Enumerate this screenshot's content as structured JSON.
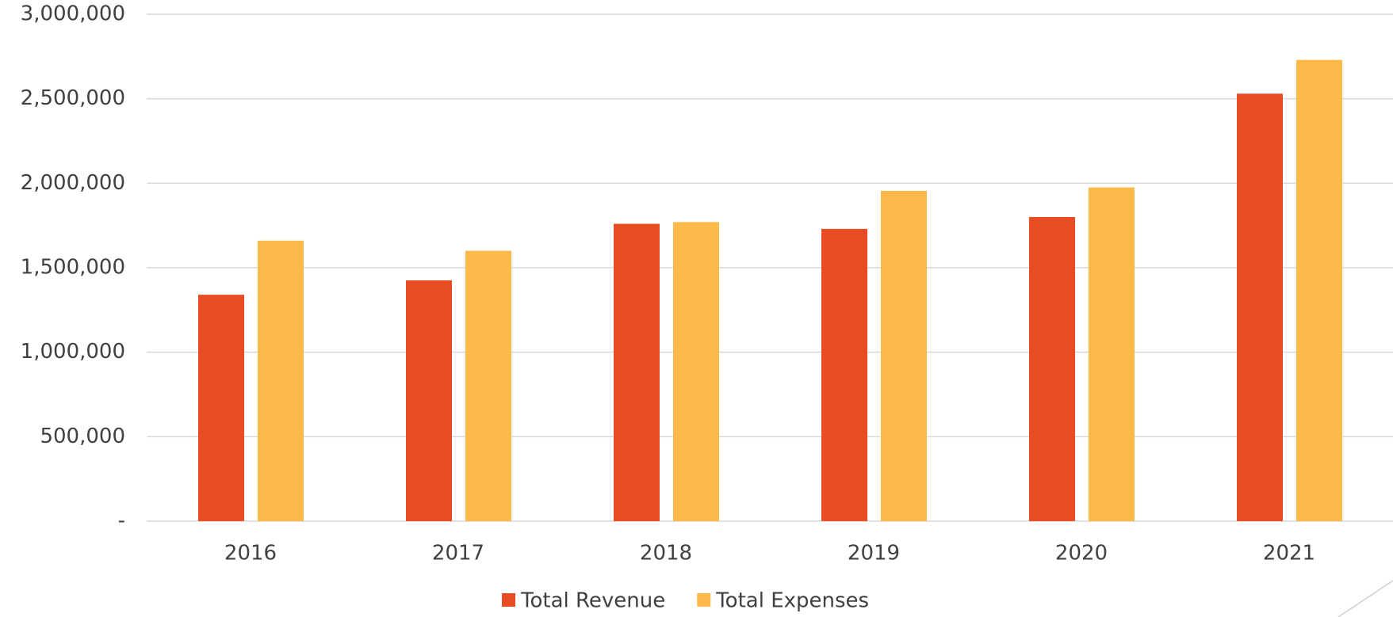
{
  "chart_data": {
    "type": "bar",
    "categories": [
      "2016",
      "2017",
      "2018",
      "2019",
      "2020",
      "2021"
    ],
    "series": [
      {
        "name": "Total Revenue",
        "color": "#e84c22",
        "values": [
          1340000,
          1425000,
          1760000,
          1730000,
          1800000,
          2530000
        ]
      },
      {
        "name": "Total Expenses",
        "color": "#fdb94a",
        "values": [
          1660000,
          1600000,
          1770000,
          1955000,
          1975000,
          2730000
        ]
      }
    ],
    "ylim": [
      0,
      3000000
    ],
    "yticks": [
      {
        "value": 0,
        "label": "-"
      },
      {
        "value": 500000,
        "label": "500,000"
      },
      {
        "value": 1000000,
        "label": "1,000,000"
      },
      {
        "value": 1500000,
        "label": "1,500,000"
      },
      {
        "value": 2000000,
        "label": "2,000,000"
      },
      {
        "value": 2500000,
        "label": "2,500,000"
      },
      {
        "value": 3000000,
        "label": "3,000,000"
      }
    ],
    "grid": true,
    "legend": "bottom"
  }
}
